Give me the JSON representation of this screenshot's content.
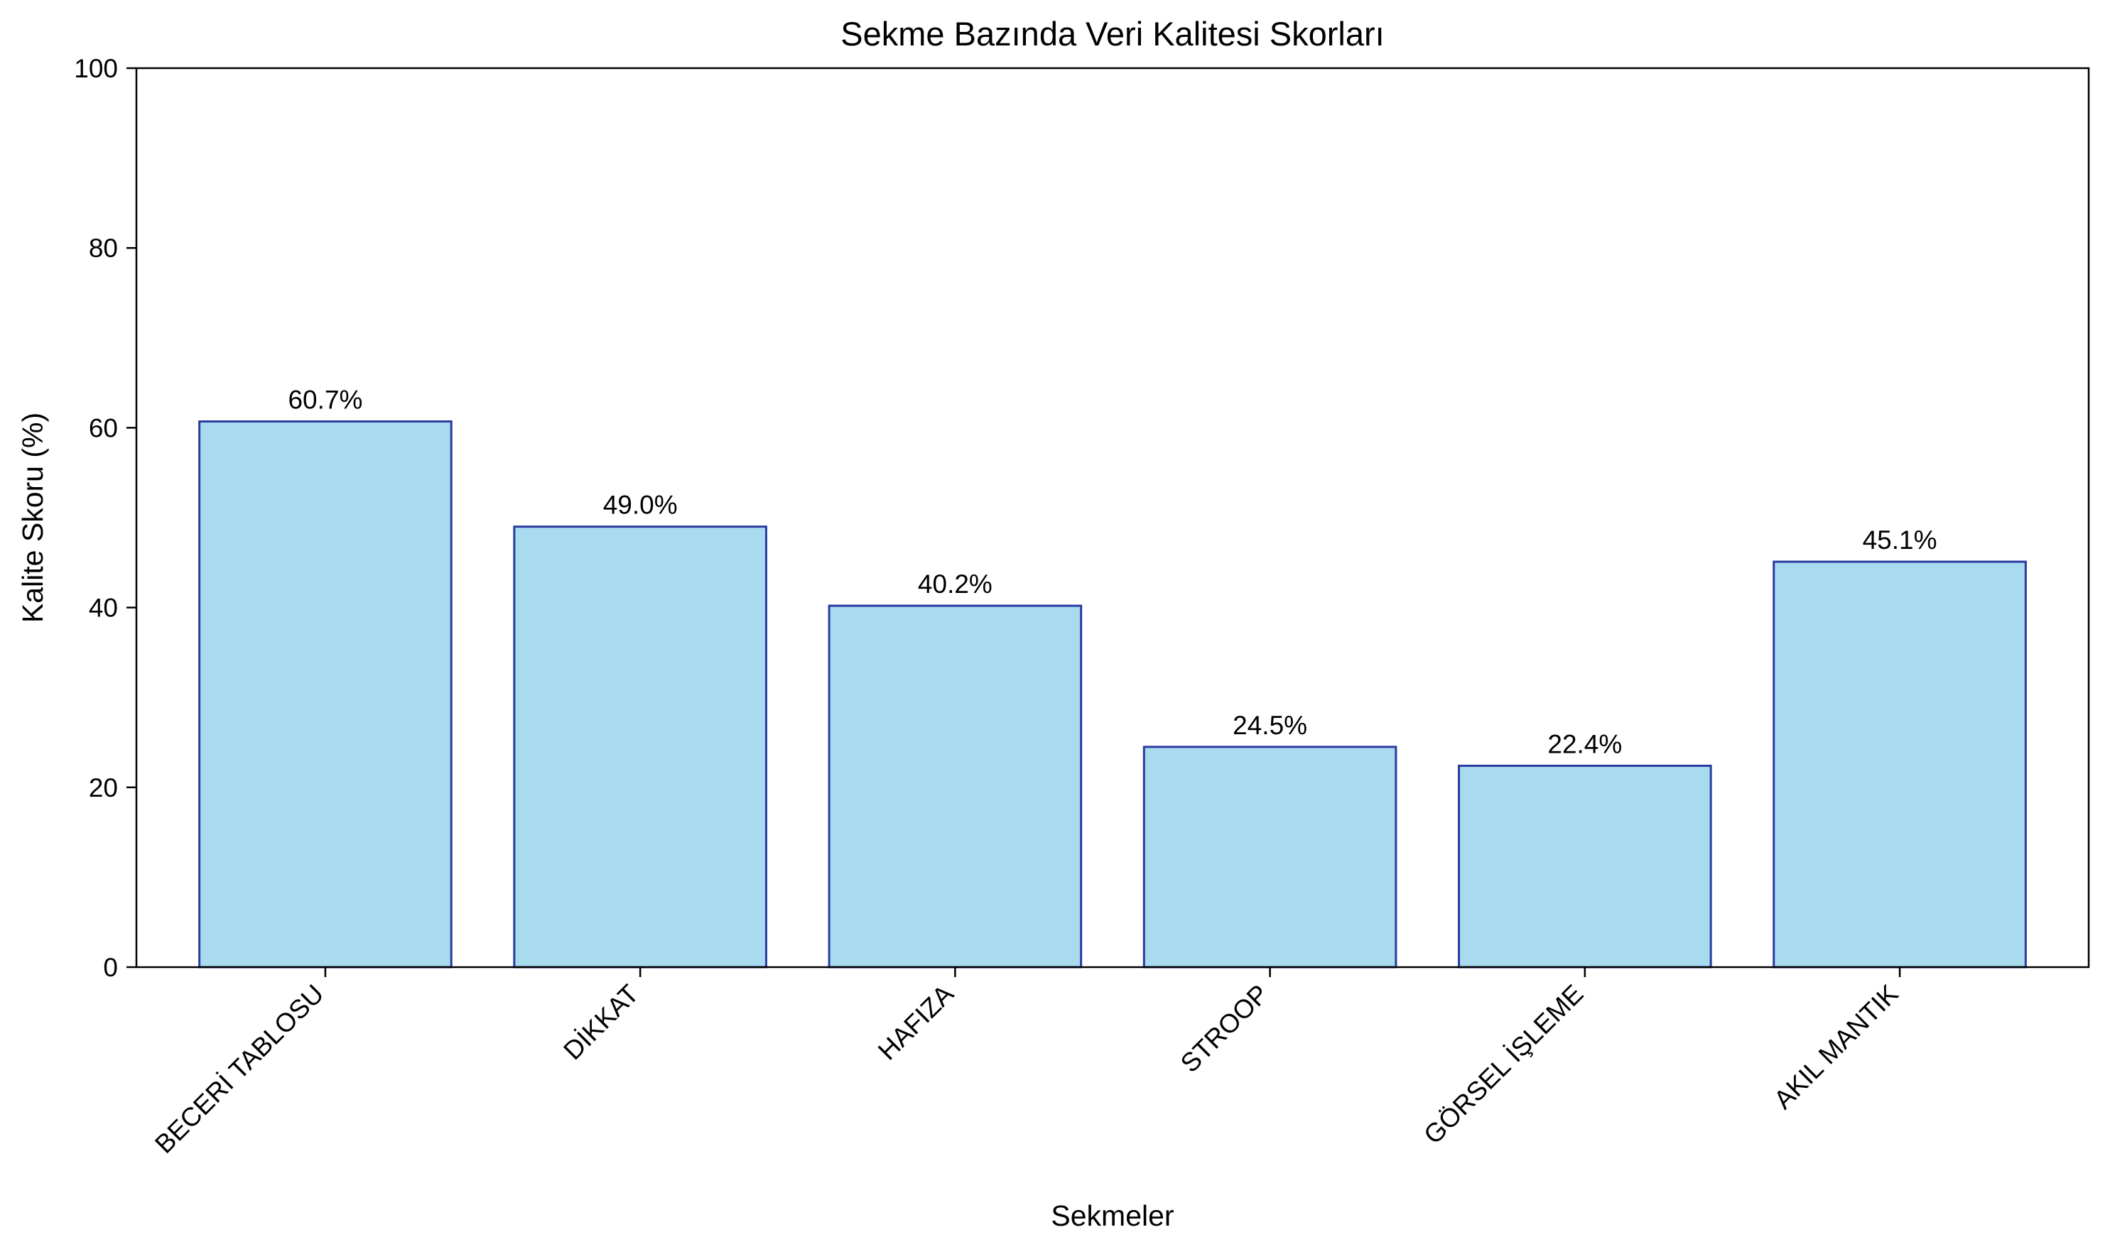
{
  "chart_data": {
    "type": "bar",
    "title": "Sekme Bazında Veri Kalitesi Skorları",
    "xlabel": "Sekmeler",
    "ylabel": "Kalite Skoru (%)",
    "ylim": [
      0,
      100
    ],
    "yticks": [
      0,
      20,
      40,
      60,
      80,
      100
    ],
    "categories": [
      "BECERİ TABLOSU",
      "DİKKAT",
      "HAFIZA",
      "STROOP",
      "GÖRSEL İŞLEME",
      "AKIL MANTIK"
    ],
    "values": [
      60.7,
      49.0,
      40.2,
      24.5,
      22.4,
      45.1
    ],
    "data_labels": [
      "60.7%",
      "49.0%",
      "40.2%",
      "24.5%",
      "22.4%",
      "45.1%"
    ],
    "grid": false,
    "colors": {
      "bar_fill": "#a9dbef",
      "bar_edge": "#2b3aa0",
      "axis": "#000000",
      "text": "#000000"
    }
  }
}
